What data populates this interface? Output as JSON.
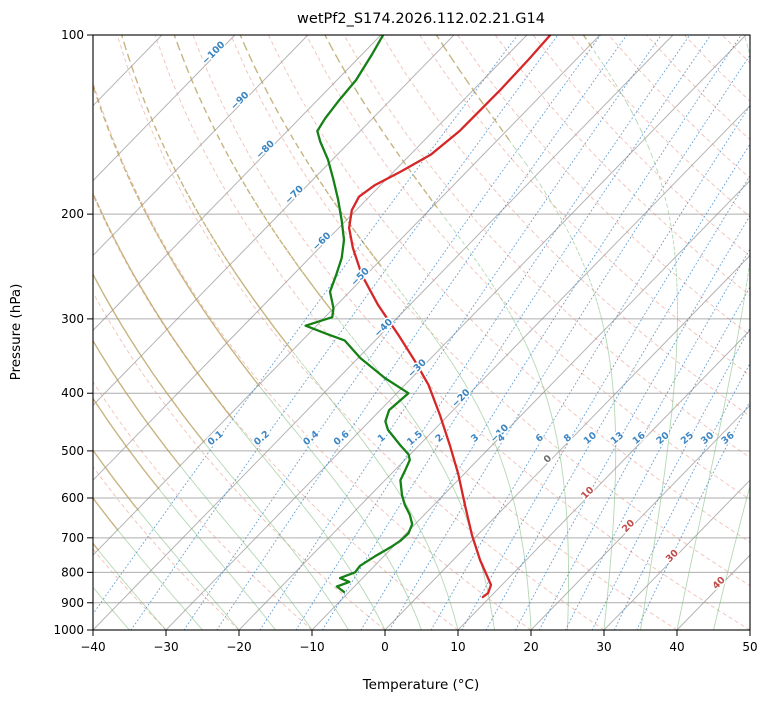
{
  "chart_data": {
    "type": "skewt_log_p",
    "title": "wetPf2_S174.2026.112.02.21.G14",
    "xlabel": "Temperature (°C)",
    "ylabel": "Pressure (hPa)",
    "xlim": [
      -40,
      50
    ],
    "pressure_lim": [
      1000,
      100
    ],
    "skew_deg_per_ln_p": 34.5,
    "x_ticks": [
      -40,
      -30,
      -20,
      -10,
      0,
      10,
      20,
      30,
      40,
      50
    ],
    "pressure_ticks": [
      100,
      200,
      300,
      400,
      500,
      600,
      700,
      800,
      900,
      1000
    ],
    "grid": true,
    "isotherms": {
      "min": -110,
      "max": 50,
      "step": 10
    },
    "dry_adiabats_theta": {
      "min": -40,
      "max": 200,
      "step": 10
    },
    "moist_adiabats_tw": {
      "min": -45,
      "max": 45,
      "step": 5
    },
    "mixing_ratios_g_kg": [
      0.1,
      0.2,
      0.4,
      0.6,
      1,
      1.5,
      2,
      3,
      4,
      6,
      8,
      10,
      13,
      16,
      20,
      25,
      30,
      36
    ],
    "mixing_ratio_label_pressure": 480,
    "isotherm_labels": [
      {
        "value": -100,
        "pressure": 108
      },
      {
        "value": -90,
        "pressure": 130
      },
      {
        "value": -80,
        "pressure": 157
      },
      {
        "value": -70,
        "pressure": 187
      },
      {
        "value": -60,
        "pressure": 224
      },
      {
        "value": -50,
        "pressure": 257
      },
      {
        "value": -40,
        "pressure": 313
      },
      {
        "value": -30,
        "pressure": 366
      },
      {
        "value": -20,
        "pressure": 411
      },
      {
        "value": -10,
        "pressure": 471
      },
      {
        "value": 0,
        "pressure": 520
      },
      {
        "value": 10,
        "pressure": 593
      },
      {
        "value": 20,
        "pressure": 674
      },
      {
        "value": 30,
        "pressure": 757
      },
      {
        "value": 40,
        "pressure": 840
      }
    ],
    "colors": {
      "temperature": "#d62728",
      "dewpoint": "#158015",
      "isotherm": "#8c8c8c",
      "isobar": "#8c8c8c",
      "dry_adiabat": "#e2836f",
      "moist_adiabat": "#74b874",
      "moist_adiabat_cold": "#b49b55",
      "mixing_ratio": "#3f87c4",
      "label_negative": "#3a85c0",
      "label_zero": "#6e6e6e",
      "label_positive": "#bf4a47",
      "axis": "#000000"
    },
    "series": [
      {
        "name": "temperature",
        "color_key": "temperature",
        "points_p_t": [
          [
            100,
            -56.8
          ],
          [
            110,
            -56.5
          ],
          [
            124,
            -56.3
          ],
          [
            145,
            -56.4
          ],
          [
            159,
            -57.2
          ],
          [
            170,
            -59.1
          ],
          [
            179,
            -60.8
          ],
          [
            187,
            -61.4
          ],
          [
            197,
            -60.6
          ],
          [
            211,
            -58.6
          ],
          [
            228,
            -55.4
          ],
          [
            253,
            -50.6
          ],
          [
            284,
            -44.4
          ],
          [
            319,
            -37.6
          ],
          [
            352,
            -32.0
          ],
          [
            387,
            -26.8
          ],
          [
            435,
            -21.2
          ],
          [
            489,
            -15.8
          ],
          [
            548,
            -10.7
          ],
          [
            617,
            -5.7
          ],
          [
            692,
            -0.8
          ],
          [
            763,
            3.7
          ],
          [
            815,
            7.0
          ],
          [
            840,
            8.5
          ],
          [
            867,
            9.2
          ],
          [
            880,
            9.0
          ]
        ]
      },
      {
        "name": "dewpoint",
        "color_key": "dewpoint",
        "points_p_t": [
          [
            100,
            -79.7
          ],
          [
            108,
            -78.6
          ],
          [
            119,
            -77.4
          ],
          [
            129,
            -77.0
          ],
          [
            138,
            -76.5
          ],
          [
            145,
            -75.9
          ],
          [
            151,
            -74.1
          ],
          [
            162,
            -70.6
          ],
          [
            175,
            -67.2
          ],
          [
            189,
            -63.9
          ],
          [
            205,
            -60.6
          ],
          [
            221,
            -57.7
          ],
          [
            237,
            -55.6
          ],
          [
            253,
            -54.1
          ],
          [
            270,
            -52.7
          ],
          [
            288,
            -50.0
          ],
          [
            298,
            -49.0
          ],
          [
            308,
            -51.5
          ],
          [
            318,
            -47.5
          ],
          [
            326,
            -44.2
          ],
          [
            349,
            -39.7
          ],
          [
            377,
            -33.7
          ],
          [
            400,
            -28.4
          ],
          [
            427,
            -28.8
          ],
          [
            446,
            -27.8
          ],
          [
            461,
            -26.3
          ],
          [
            489,
            -22.6
          ],
          [
            507,
            -20.2
          ],
          [
            518,
            -19.3
          ],
          [
            541,
            -18.5
          ],
          [
            560,
            -17.9
          ],
          [
            593,
            -15.7
          ],
          [
            616,
            -14.0
          ],
          [
            640,
            -12.0
          ],
          [
            664,
            -10.4
          ],
          [
            688,
            -9.7
          ],
          [
            708,
            -9.8
          ],
          [
            726,
            -10.3
          ],
          [
            752,
            -11.2
          ],
          [
            780,
            -12.0
          ],
          [
            800,
            -11.8
          ],
          [
            818,
            -13.1
          ],
          [
            830,
            -11.3
          ],
          [
            845,
            -12.4
          ],
          [
            863,
            -10.7
          ]
        ]
      }
    ]
  }
}
